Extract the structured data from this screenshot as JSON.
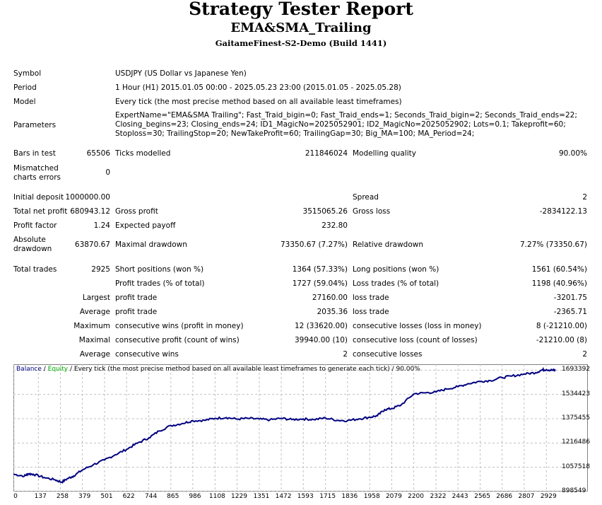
{
  "header": {
    "title": "Strategy Tester Report",
    "ea_name": "EMA&SMA_Trailing",
    "server": "GaitameFinest-S2-Demo (Build 1441)"
  },
  "info": {
    "symbol_label": "Symbol",
    "symbol_value": "USDJPY (US Dollar vs Japanese Yen)",
    "period_label": "Period",
    "period_value": "1 Hour (H1) 2015.01.05 00:00 - 2025.05.23 23:00 (2015.01.05 - 2025.05.28)",
    "model_label": "Model",
    "model_value": "Every tick (the most precise method based on all available least timeframes)",
    "parameters_label": "Parameters",
    "parameters_value": "ExpertName=\"EMA&SMA Trailing\"; Fast_Traid_bigin=0; Fast_Traid_ends=1; Seconds_Traid_bigin=2; Seconds_Traid_ends=22; Closing_begins=23; Closing_ends=24; ID1_MagicNo=2025052901; ID2_MagicNo=2025052902; Lots=0.1; Takeprofit=60; Stoploss=30; TrailingStop=20; NewTakeProfit=60; TrailingGap=30; Big_MA=100; MA_Period=24;"
  },
  "stats": {
    "bars_label": "Bars in test",
    "bars_value": "65506",
    "ticks_label": "Ticks modelled",
    "ticks_value": "211846024",
    "quality_label": "Modelling quality",
    "quality_value": "90.00%",
    "mismatch_label_1": "Mismatched",
    "mismatch_label_2": "charts errors",
    "mismatch_value": "0",
    "deposit_label": "Initial deposit",
    "deposit_value": "1000000.00",
    "spread_label": "Spread",
    "spread_value": "2",
    "net_label": "Total net profit",
    "net_value": "680943.12",
    "gross_profit_label": "Gross profit",
    "gross_profit_value": "3515065.26",
    "gross_loss_label": "Gross loss",
    "gross_loss_value": "-2834122.13",
    "pf_label": "Profit factor",
    "pf_value": "1.24",
    "payoff_label": "Expected payoff",
    "payoff_value": "232.80",
    "abs_dd_label_1": "Absolute",
    "abs_dd_label_2": "drawdown",
    "abs_dd_value": "63870.67",
    "max_dd_label": "Maximal drawdown",
    "max_dd_value": "73350.67 (7.27%)",
    "rel_dd_label": "Relative drawdown",
    "rel_dd_value": "7.27% (73350.67)",
    "trades_label": "Total trades",
    "trades_value": "2925",
    "short_label": "Short positions (won %)",
    "short_value": "1364 (57.33%)",
    "long_label": "Long positions (won %)",
    "long_value": "1561 (60.54%)",
    "profit_trades_label": "Profit trades (% of total)",
    "profit_trades_value": "1727 (59.04%)",
    "loss_trades_label": "Loss trades (% of total)",
    "loss_trades_value": "1198 (40.96%)",
    "largest_label": "Largest",
    "largest_profit_label": "profit trade",
    "largest_profit_value": "27160.00",
    "largest_loss_label": "loss trade",
    "largest_loss_value": "-3201.75",
    "average_label": "Average",
    "avg_profit_label": "profit trade",
    "avg_profit_value": "2035.36",
    "avg_loss_label": "loss trade",
    "avg_loss_value": "-2365.71",
    "maximum_label": "Maximum",
    "max_wins_label": "consecutive wins (profit in money)",
    "max_wins_value": "12 (33620.00)",
    "max_losses_label": "consecutive losses (loss in money)",
    "max_losses_value": "8 (-21210.00)",
    "maximal_label": "Maximal",
    "maximal_profit_label": "consecutive profit (count of wins)",
    "maximal_profit_value": "39940.00 (10)",
    "maximal_loss_label": "consecutive loss (count of losses)",
    "maximal_loss_value": "-21210.00 (8)",
    "average2_label": "Average",
    "avg_wins_label": "consecutive wins",
    "avg_wins_value": "2",
    "avg_losses_label": "consecutive losses",
    "avg_losses_value": "2"
  },
  "chart_data": {
    "type": "line",
    "legend": {
      "balance": "Balance",
      "sep1": " / ",
      "equity": "Equity",
      "rest": " / Every tick (the most precise method based on all available least timeframes to generate each tick) / 90.00%"
    },
    "colors": {
      "balance": "#000080",
      "equity": "#00aa00",
      "grid": "#c0c0c0"
    },
    "yticks": [
      1693392,
      1534423,
      1375455,
      1216486,
      1057518,
      898549
    ],
    "xticks": [
      0,
      137,
      258,
      379,
      501,
      622,
      744,
      865,
      986,
      1108,
      1229,
      1351,
      1472,
      1593,
      1715,
      1836,
      1958,
      2079,
      2200,
      2322,
      2443,
      2565,
      2686,
      2807,
      2929
    ],
    "xlim": [
      0,
      2990
    ],
    "ylim": [
      898549,
      1732000
    ],
    "series": [
      {
        "x": [
          0,
          60,
          80,
          110,
          170,
          230,
          265,
          300,
          330,
          379,
          440,
          501,
          560,
          622,
          680,
          744,
          800,
          865,
          930,
          986,
          1050,
          1108,
          1170,
          1229,
          1290,
          1351,
          1410,
          1472,
          1530,
          1593,
          1650,
          1715,
          1780,
          1836,
          1900,
          1958,
          2000,
          2040,
          2079,
          2130,
          2200,
          2260,
          2322,
          2380,
          2443,
          2500,
          2565,
          2620,
          2686,
          2740,
          2807,
          2870,
          2905,
          2929,
          2960,
          2980
        ],
        "values": [
          1012000,
          1000000,
          1015000,
          1012000,
          990000,
          975000,
          960000,
          985000,
          1000000,
          1040000,
          1075000,
          1105000,
          1140000,
          1175000,
          1215000,
          1250000,
          1295000,
          1330000,
          1345000,
          1362000,
          1365000,
          1378000,
          1383000,
          1373000,
          1378000,
          1373000,
          1368000,
          1378000,
          1370000,
          1374000,
          1370000,
          1380000,
          1365000,
          1363000,
          1375000,
          1385000,
          1395000,
          1435000,
          1442000,
          1465000,
          1538000,
          1545000,
          1550000,
          1570000,
          1585000,
          1605000,
          1620000,
          1625000,
          1645000,
          1655000,
          1668000,
          1677000,
          1695000,
          1697000,
          1693000,
          1692000
        ]
      }
    ]
  }
}
